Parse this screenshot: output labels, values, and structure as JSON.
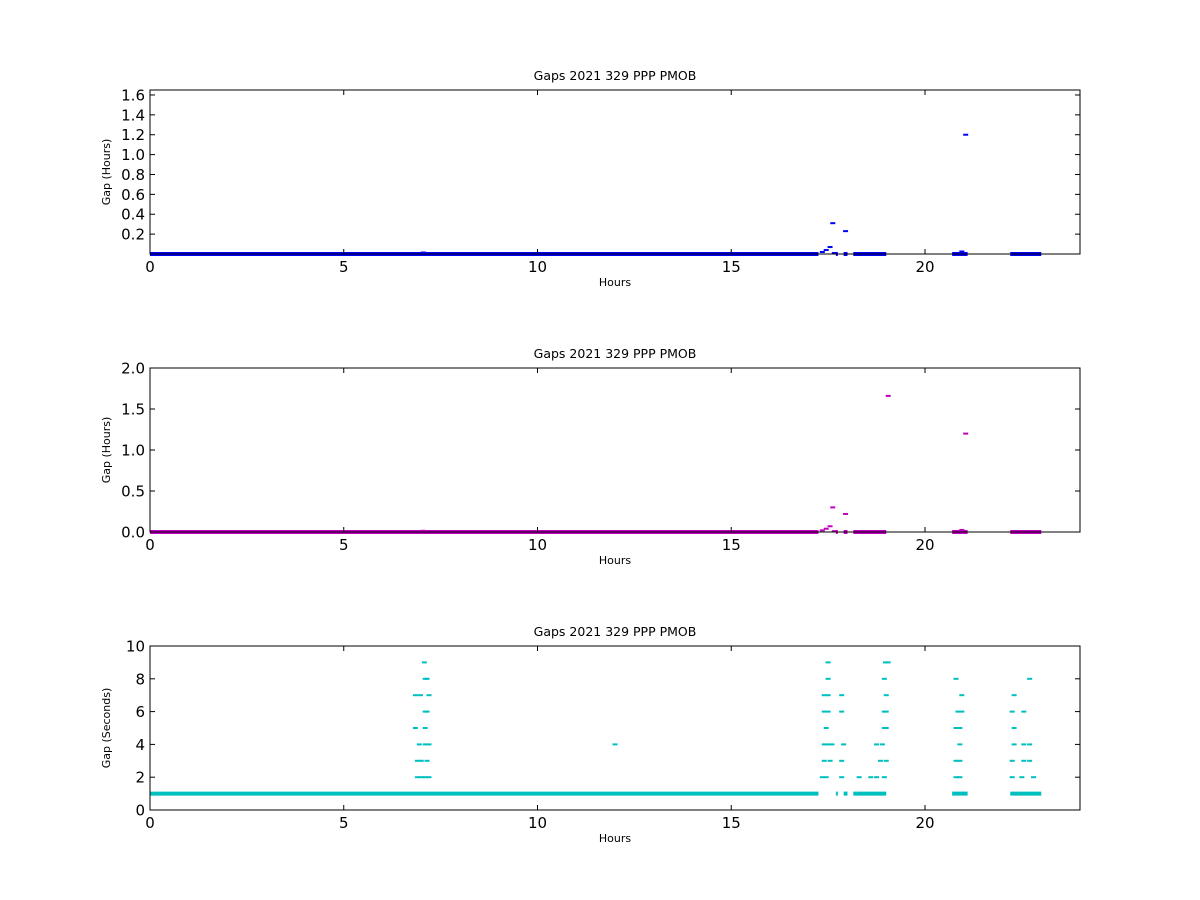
{
  "chart_data": [
    {
      "type": "scatter",
      "title": "Gaps 2021 329 PPP  PMOB",
      "xlabel": "Hours",
      "ylabel": "Gap (Hours)",
      "xlim": [
        0,
        24
      ],
      "ylim": [
        0,
        1.65
      ],
      "xticks": [
        0,
        5,
        10,
        15,
        20
      ],
      "yticks": [
        0.2,
        0.4,
        0.6,
        0.8,
        1.0,
        1.2,
        1.4,
        1.6
      ],
      "ytick_labels": [
        "0.2",
        "0.4",
        "0.6",
        "0.8",
        "1.0",
        "1.2",
        "1.4",
        "1.6"
      ],
      "color": "#0000ff",
      "baseline_segments": [
        [
          0,
          17.25
        ],
        [
          17.7,
          17.75
        ],
        [
          17.9,
          18.0
        ],
        [
          18.15,
          19.0
        ],
        [
          20.7,
          21.1
        ],
        [
          22.2,
          23.0
        ]
      ],
      "baseline_value": 0.0003,
      "points": [
        [
          7.05,
          0.015
        ],
        [
          17.35,
          0.02
        ],
        [
          17.45,
          0.04
        ],
        [
          17.55,
          0.07
        ],
        [
          17.62,
          0.31
        ],
        [
          17.66,
          0.01
        ],
        [
          17.95,
          0.23
        ],
        [
          20.95,
          0.025
        ],
        [
          21.05,
          1.2
        ]
      ]
    },
    {
      "type": "scatter",
      "title": "Gaps 2021 329 PPP  PMOB",
      "xlabel": "Hours",
      "ylabel": "Gap (Hours)",
      "xlim": [
        0,
        24
      ],
      "ylim": [
        0,
        2.0
      ],
      "xticks": [
        0,
        5,
        10,
        15,
        20
      ],
      "yticks": [
        0.0,
        0.5,
        1.0,
        1.5,
        2.0
      ],
      "ytick_labels": [
        "0.0",
        "0.5",
        "1.0",
        "1.5",
        "2.0"
      ],
      "color": "#bf00bf",
      "baseline_segments": [
        [
          0,
          17.25
        ],
        [
          17.7,
          17.75
        ],
        [
          17.9,
          18.0
        ],
        [
          18.15,
          19.0
        ],
        [
          20.7,
          21.1
        ],
        [
          22.2,
          23.0
        ]
      ],
      "baseline_value": 0.0003,
      "points": [
        [
          7.05,
          0.015
        ],
        [
          17.35,
          0.02
        ],
        [
          17.45,
          0.04
        ],
        [
          17.55,
          0.07
        ],
        [
          17.62,
          0.3
        ],
        [
          17.66,
          0.01
        ],
        [
          17.95,
          0.22
        ],
        [
          19.05,
          1.66
        ],
        [
          20.95,
          0.025
        ],
        [
          21.05,
          1.2
        ]
      ]
    },
    {
      "type": "scatter",
      "title": "Gaps 2021 329 PPP  PMOB",
      "xlabel": "Hours",
      "ylabel": "Gap (Seconds)",
      "xlim": [
        0,
        24
      ],
      "ylim": [
        0,
        10
      ],
      "xticks": [
        0,
        5,
        10,
        15,
        20
      ],
      "yticks": [
        0,
        2,
        4,
        6,
        8,
        10
      ],
      "ytick_labels": [
        "0",
        "2",
        "4",
        "6",
        "8",
        "10"
      ],
      "color": "#00bfbf",
      "baseline_segments": [
        [
          0,
          17.25
        ],
        [
          17.7,
          17.75
        ],
        [
          17.9,
          18.0
        ],
        [
          18.15,
          19.0
        ],
        [
          20.7,
          21.1
        ],
        [
          22.2,
          23.0
        ]
      ],
      "baseline_value": 1,
      "points": [
        [
          6.9,
          2
        ],
        [
          7.0,
          2
        ],
        [
          7.1,
          2
        ],
        [
          7.2,
          2
        ],
        [
          6.9,
          3
        ],
        [
          7.0,
          3
        ],
        [
          7.15,
          3
        ],
        [
          6.95,
          4
        ],
        [
          7.1,
          4
        ],
        [
          7.2,
          4
        ],
        [
          6.85,
          5
        ],
        [
          7.1,
          5
        ],
        [
          7.1,
          6
        ],
        [
          7.15,
          6
        ],
        [
          6.85,
          7
        ],
        [
          6.98,
          7
        ],
        [
          7.2,
          7
        ],
        [
          7.1,
          8
        ],
        [
          7.15,
          8
        ],
        [
          7.08,
          9
        ],
        [
          12.0,
          4
        ],
        [
          17.35,
          2
        ],
        [
          17.45,
          2
        ],
        [
          17.4,
          3
        ],
        [
          17.55,
          3
        ],
        [
          17.4,
          4
        ],
        [
          17.5,
          4
        ],
        [
          17.6,
          4
        ],
        [
          17.45,
          5
        ],
        [
          17.4,
          6
        ],
        [
          17.5,
          6
        ],
        [
          17.4,
          7
        ],
        [
          17.5,
          7
        ],
        [
          17.5,
          8
        ],
        [
          17.5,
          9
        ],
        [
          17.85,
          2
        ],
        [
          17.85,
          3
        ],
        [
          17.9,
          4
        ],
        [
          17.85,
          6
        ],
        [
          17.85,
          7
        ],
        [
          18.3,
          2
        ],
        [
          18.6,
          2
        ],
        [
          18.75,
          2
        ],
        [
          18.95,
          2
        ],
        [
          18.85,
          3
        ],
        [
          19.0,
          3
        ],
        [
          18.75,
          4
        ],
        [
          18.9,
          4
        ],
        [
          18.95,
          5
        ],
        [
          19.0,
          5
        ],
        [
          18.95,
          6
        ],
        [
          19.0,
          6
        ],
        [
          19.0,
          7
        ],
        [
          18.95,
          8
        ],
        [
          18.98,
          9
        ],
        [
          19.05,
          9
        ],
        [
          20.8,
          2
        ],
        [
          20.9,
          2
        ],
        [
          20.8,
          3
        ],
        [
          20.9,
          3
        ],
        [
          20.9,
          4
        ],
        [
          20.8,
          5
        ],
        [
          20.9,
          5
        ],
        [
          20.85,
          6
        ],
        [
          20.95,
          6
        ],
        [
          20.95,
          7
        ],
        [
          20.8,
          8
        ],
        [
          22.25,
          2
        ],
        [
          22.5,
          2
        ],
        [
          22.8,
          2
        ],
        [
          22.25,
          3
        ],
        [
          22.55,
          3
        ],
        [
          22.7,
          3
        ],
        [
          22.3,
          4
        ],
        [
          22.55,
          4
        ],
        [
          22.7,
          4
        ],
        [
          22.3,
          5
        ],
        [
          22.25,
          6
        ],
        [
          22.55,
          6
        ],
        [
          22.3,
          7
        ],
        [
          22.7,
          8
        ]
      ]
    }
  ]
}
